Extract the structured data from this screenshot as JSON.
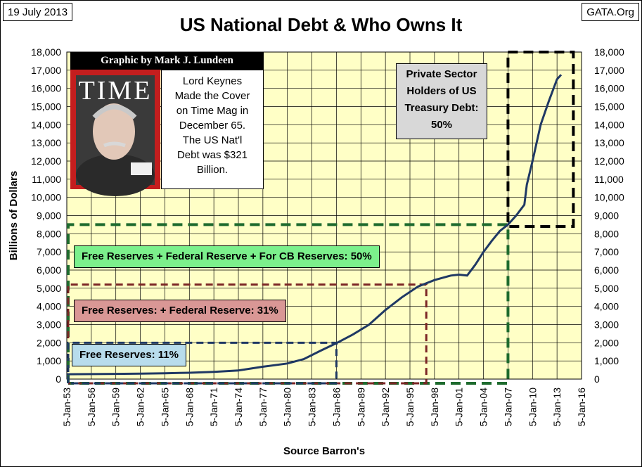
{
  "header": {
    "date": "19 July 2013",
    "source_site": "GATA.Org",
    "title": "US National Debt & Who Owns It"
  },
  "graphic": {
    "credit": "Graphic by Mark J. Lundeen",
    "cover_image": "time-magazine-keynes-cover",
    "cover_masthead": "TIME",
    "keynes_note": [
      "Lord Keynes",
      "Made the Cover",
      "on Time Mag in",
      "December 65.",
      "The US Nat'l",
      "Debt was $321",
      "Billion."
    ]
  },
  "annotations": {
    "private_sector": [
      "Private Sector",
      "Holders of US",
      "Treasury Debt:",
      "50%"
    ],
    "free_fed_cb": "Free Reserves + Federal Reserve + For CB Reserves: 50%",
    "free_fed": "Free Reserves: + Federal Reserve: 31%",
    "free_only": "Free Reserves: 11%"
  },
  "colors": {
    "plot_bg": "#ffffc6",
    "line": "#1f3864",
    "green": "#1e6b2e",
    "maroon": "#7b2525",
    "navy": "#1f3864",
    "box_green": "#7cf08c",
    "box_red": "#d99795",
    "box_blue": "#b8dcec",
    "box_gray": "#d8d8d8"
  },
  "chart_data": {
    "type": "line",
    "title": "US National Debt & Who Owns It",
    "xlabel": "Source Barron's",
    "ylabel": "Billions of Dollars",
    "ylim": [
      0,
      18000
    ],
    "xlim": [
      1953,
      2016
    ],
    "grid": true,
    "x_ticks": [
      "5-Jan-53",
      "5-Jan-56",
      "5-Jan-59",
      "5-Jan-62",
      "5-Jan-65",
      "5-Jan-68",
      "5-Jan-71",
      "5-Jan-74",
      "5-Jan-77",
      "5-Jan-80",
      "5-Jan-83",
      "5-Jan-86",
      "5-Jan-89",
      "5-Jan-92",
      "5-Jan-95",
      "5-Jan-98",
      "5-Jan-01",
      "5-Jan-04",
      "5-Jan-07",
      "5-Jan-10",
      "5-Jan-13",
      "5-Jan-16"
    ],
    "y_ticks": [
      "0",
      "1,000",
      "2,000",
      "3,000",
      "4,000",
      "5,000",
      "6,000",
      "7,000",
      "8,000",
      "9,000",
      "10,000",
      "11,000",
      "12,000",
      "13,000",
      "14,000",
      "15,000",
      "16,000",
      "17,000",
      "18,000"
    ],
    "series": [
      {
        "points": [
          [
            1953.0,
            266
          ],
          [
            1956.0,
            273
          ],
          [
            1959.0,
            285
          ],
          [
            1962.0,
            300
          ],
          [
            1965.0,
            321
          ],
          [
            1968.0,
            350
          ],
          [
            1971.0,
            400
          ],
          [
            1974.0,
            475
          ],
          [
            1977.0,
            680
          ],
          [
            1980.0,
            860
          ],
          [
            1982.0,
            1100
          ],
          [
            1984.0,
            1550
          ],
          [
            1986.0,
            1980
          ],
          [
            1988.0,
            2450
          ],
          [
            1990.0,
            3000
          ],
          [
            1992.0,
            3800
          ],
          [
            1994.0,
            4500
          ],
          [
            1996.0,
            5100
          ],
          [
            1998.0,
            5450
          ],
          [
            2000.0,
            5700
          ],
          [
            2001.0,
            5750
          ],
          [
            2002.0,
            5700
          ],
          [
            2003.0,
            6300
          ],
          [
            2004.0,
            7000
          ],
          [
            2005.0,
            7600
          ],
          [
            2006.0,
            8150
          ],
          [
            2007.0,
            8500
          ],
          [
            2008.0,
            9000
          ],
          [
            2009.0,
            9600
          ],
          [
            2009.3,
            10700
          ],
          [
            2010.0,
            12000
          ],
          [
            2011.0,
            14000
          ],
          [
            2012.0,
            15300
          ],
          [
            2013.0,
            16500
          ],
          [
            2013.5,
            16750
          ]
        ]
      }
    ],
    "reference_boxes": [
      {
        "color": "green",
        "from_year": 1953,
        "to_year": 2007,
        "level": 8500
      },
      {
        "color": "maroon",
        "from_year": 1953,
        "to_year": 1997,
        "level": 5200
      },
      {
        "color": "navy",
        "from_year": 1953,
        "to_year": 1986,
        "level": 2000
      },
      {
        "color": "black",
        "from_year": 2007,
        "to_year": 2015,
        "from_level": 8400,
        "to_level": 18000
      }
    ]
  }
}
